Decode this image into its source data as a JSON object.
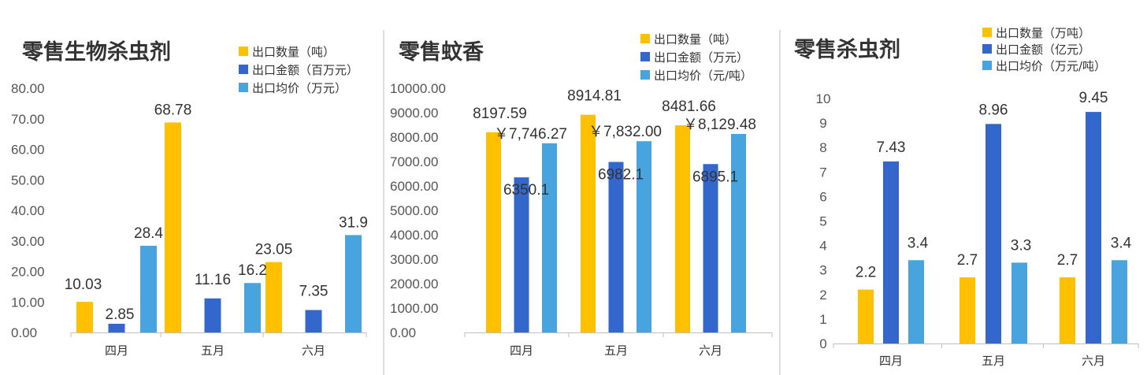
{
  "colors": {
    "quantity": "#FFC000",
    "amount": "#3467CC",
    "price": "#48A4DF"
  },
  "chart_data": [
    {
      "type": "bar",
      "title": "零售生物杀虫剂",
      "categories": [
        "四月",
        "五月",
        "六月"
      ],
      "series": [
        {
          "name": "出口数量（吨）",
          "values": [
            10.03,
            68.78,
            23.05
          ],
          "labels": [
            "10.03",
            "68.78",
            "23.05"
          ]
        },
        {
          "name": "出口金额（百万元）",
          "values": [
            2.85,
            11.16,
            7.35
          ],
          "labels": [
            "2.85",
            "11.16",
            "7.35"
          ]
        },
        {
          "name": "出口均价（万元）",
          "values": [
            28.4,
            16.2,
            31.9
          ],
          "labels": [
            "28.4",
            "16.2",
            "31.9"
          ]
        }
      ],
      "y_ticks": [
        "0.00",
        "10.00",
        "20.00",
        "30.00",
        "40.00",
        "50.00",
        "60.00",
        "70.00",
        "80.00"
      ],
      "ylim": [
        0,
        80
      ],
      "grid": false,
      "legend_position": "top-right"
    },
    {
      "type": "bar",
      "title": "零售蚊香",
      "categories": [
        "四月",
        "五月",
        "六月"
      ],
      "series": [
        {
          "name": "出口数量（吨）",
          "values": [
            8197.59,
            8914.81,
            8481.66
          ],
          "labels": [
            "8197.59",
            "8914.81",
            "8481.66"
          ]
        },
        {
          "name": "出口金额（万元）",
          "values": [
            6350.1,
            6982.1,
            6895.1
          ],
          "labels": [
            "6350.1",
            "6982.1",
            "6895.1"
          ]
        },
        {
          "name": "出口均价（元/吨）",
          "values": [
            7746.27,
            7832.0,
            8129.48
          ],
          "labels": [
            "￥7,746.27",
            "￥7,832.00",
            "￥8,129.48"
          ]
        }
      ],
      "y_ticks": [
        "0.00",
        "1000.00",
        "2000.00",
        "3000.00",
        "4000.00",
        "5000.00",
        "6000.00",
        "7000.00",
        "8000.00",
        "9000.00",
        "10000.00"
      ],
      "ylim": [
        0,
        10000
      ],
      "grid": false,
      "legend_position": "top-right"
    },
    {
      "type": "bar",
      "title": "零售杀虫剂",
      "categories": [
        "四月",
        "五月",
        "六月"
      ],
      "series": [
        {
          "name": "出口数量（万吨）",
          "values": [
            2.2,
            2.7,
            2.7
          ],
          "labels": [
            "2.2",
            "2.7",
            "2.7"
          ]
        },
        {
          "name": "出口金额（亿元）",
          "values": [
            7.43,
            8.96,
            9.45
          ],
          "labels": [
            "7.43",
            "8.96",
            "9.45"
          ]
        },
        {
          "name": "出口均价（万元/吨）",
          "values": [
            3.4,
            3.3,
            3.4
          ],
          "labels": [
            "3.4",
            "3.3",
            "3.4"
          ]
        }
      ],
      "y_ticks": [
        "0",
        "1",
        "2",
        "3",
        "4",
        "5",
        "6",
        "7",
        "8",
        "9",
        "10"
      ],
      "ylim": [
        0,
        10
      ],
      "grid": false,
      "legend_position": "top-right"
    }
  ]
}
